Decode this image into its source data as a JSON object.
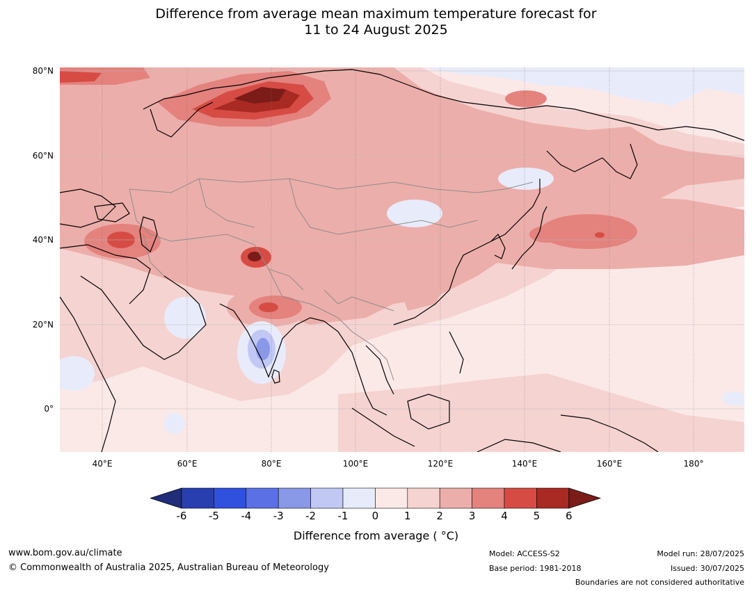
{
  "title": {
    "line1": "Difference from average mean maximum temperature forecast for",
    "line2": "11 to 24 August 2025"
  },
  "map": {
    "lat_labels": [
      "80°N",
      "60°N",
      "40°N",
      "20°N",
      "0°"
    ],
    "lon_labels": [
      "40°E",
      "60°E",
      "80°E",
      "100°E",
      "120°E",
      "140°E",
      "160°E",
      "180°"
    ],
    "colors": {
      "ocean_base": "#fbe9e8",
      "c1": "#f5d3d1",
      "c2": "#ecaeaa",
      "c3": "#e4827e",
      "c4": "#d64c44",
      "c5": "#a82a22",
      "c6": "#7b1c18",
      "cm1": "#e8ebfa",
      "cm2": "#c1c8f3",
      "cm3": "#8a98e8",
      "coast": "#000000",
      "border": "#8c8c8c"
    }
  },
  "colorbar": {
    "ticks": [
      "-6",
      "-5",
      "-4",
      "-3",
      "-2",
      "-1",
      "0",
      "1",
      "2",
      "3",
      "4",
      "5",
      "6"
    ],
    "colors": [
      "#1f2d7a",
      "#283fb0",
      "#3050de",
      "#5b70e4",
      "#8a98e8",
      "#c1c8f3",
      "#e8ebfa",
      "#fbe9e8",
      "#f5d3d1",
      "#ecaeaa",
      "#e4827e",
      "#d64c44",
      "#a82a22",
      "#7b1c18"
    ],
    "label": "Difference from average ( °C)"
  },
  "footer": {
    "website": "www.bom.gov.au/climate",
    "copyright": "© Commonwealth of Australia 2025, Australian Bureau of Meteorology",
    "model": "Model: ACCESS-S2",
    "base_period": "Base period: 1981-2018",
    "model_run": "Model run: 28/07/2025",
    "issued": "Issued: 30/07/2025",
    "disclaimer": "Boundaries are not considered authoritative"
  }
}
